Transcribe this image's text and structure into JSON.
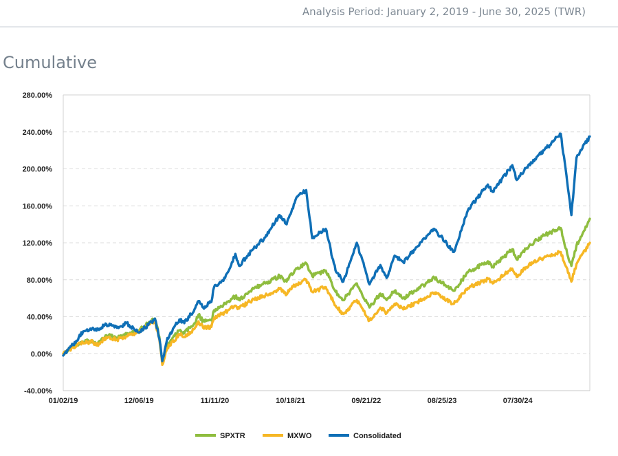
{
  "header": {
    "period": "Analysis Period: January 2, 2019 - June 30, 2025 (TWR)"
  },
  "section": {
    "title": "Cumulative"
  },
  "chart_data": {
    "type": "line",
    "title": "",
    "xlabel": "",
    "ylabel": "",
    "x_tick_labels": [
      "01/02/19",
      "12/06/19",
      "11/11/20",
      "10/18/21",
      "09/21/22",
      "08/25/23",
      "07/30/24"
    ],
    "y_tick_labels": [
      "280.00%",
      "240.00%",
      "200.00%",
      "160.00%",
      "120.00%",
      "80.00%",
      "40.00%",
      "0.00%",
      "-40.00%"
    ],
    "ylim": [
      -40,
      280
    ],
    "y_unit": "%",
    "grid": "horizontal dashed",
    "legend_position": "bottom-center",
    "x_unit": "date",
    "x_range": [
      "2019-01-02",
      "2025-06-30"
    ],
    "series": [
      {
        "name": "SPXTR",
        "color": "#8fbd3f",
        "points": [
          [
            "2019-01-02",
            0
          ],
          [
            "2019-02-15",
            8
          ],
          [
            "2019-04-01",
            13
          ],
          [
            "2019-05-15",
            14
          ],
          [
            "2019-06-01",
            10
          ],
          [
            "2019-07-15",
            20
          ],
          [
            "2019-09-01",
            17
          ],
          [
            "2019-10-15",
            21
          ],
          [
            "2019-12-06",
            25
          ],
          [
            "2020-01-20",
            33
          ],
          [
            "2020-02-19",
            38
          ],
          [
            "2020-03-10",
            18
          ],
          [
            "2020-03-23",
            -10
          ],
          [
            "2020-04-15",
            10
          ],
          [
            "2020-06-08",
            25
          ],
          [
            "2020-06-30",
            22
          ],
          [
            "2020-08-15",
            33
          ],
          [
            "2020-09-02",
            42
          ],
          [
            "2020-09-23",
            35
          ],
          [
            "2020-10-30",
            36
          ],
          [
            "2020-11-11",
            47
          ],
          [
            "2020-12-31",
            54
          ],
          [
            "2021-02-15",
            62
          ],
          [
            "2021-03-04",
            58
          ],
          [
            "2021-05-01",
            70
          ],
          [
            "2021-06-30",
            76
          ],
          [
            "2021-09-02",
            84
          ],
          [
            "2021-10-04",
            78
          ],
          [
            "2021-10-18",
            85
          ],
          [
            "2021-11-20",
            92
          ],
          [
            "2021-12-31",
            98
          ],
          [
            "2022-01-27",
            84
          ],
          [
            "2022-03-29",
            90
          ],
          [
            "2022-05-12",
            67
          ],
          [
            "2022-06-16",
            58
          ],
          [
            "2022-08-16",
            76
          ],
          [
            "2022-09-30",
            55
          ],
          [
            "2022-10-12",
            50
          ],
          [
            "2022-11-30",
            65
          ],
          [
            "2022-12-28",
            58
          ],
          [
            "2023-02-02",
            68
          ],
          [
            "2023-03-13",
            60
          ],
          [
            "2023-06-30",
            77
          ],
          [
            "2023-07-31",
            82
          ],
          [
            "2023-10-27",
            68
          ],
          [
            "2023-12-29",
            88
          ],
          [
            "2024-03-28",
            100
          ],
          [
            "2024-04-19",
            94
          ],
          [
            "2024-07-16",
            113
          ],
          [
            "2024-08-05",
            102
          ],
          [
            "2024-09-30",
            117
          ],
          [
            "2024-12-06",
            128
          ],
          [
            "2025-02-19",
            136
          ],
          [
            "2025-03-13",
            114
          ],
          [
            "2025-04-08",
            95
          ],
          [
            "2025-05-01",
            117
          ],
          [
            "2025-06-30",
            146
          ]
        ]
      },
      {
        "name": "MXWO",
        "color": "#f6b725",
        "points": [
          [
            "2019-01-02",
            0
          ],
          [
            "2019-02-15",
            7
          ],
          [
            "2019-04-01",
            12
          ],
          [
            "2019-05-15",
            13
          ],
          [
            "2019-06-01",
            9
          ],
          [
            "2019-07-15",
            18
          ],
          [
            "2019-09-01",
            15
          ],
          [
            "2019-10-15",
            19
          ],
          [
            "2019-12-06",
            23
          ],
          [
            "2020-01-20",
            31
          ],
          [
            "2020-02-19",
            35
          ],
          [
            "2020-03-10",
            15
          ],
          [
            "2020-03-23",
            -12
          ],
          [
            "2020-04-15",
            6
          ],
          [
            "2020-06-08",
            21
          ],
          [
            "2020-06-30",
            18
          ],
          [
            "2020-08-15",
            27
          ],
          [
            "2020-09-02",
            35
          ],
          [
            "2020-09-23",
            28
          ],
          [
            "2020-10-30",
            29
          ],
          [
            "2020-11-11",
            39
          ],
          [
            "2020-12-31",
            45
          ],
          [
            "2021-02-15",
            52
          ],
          [
            "2021-03-04",
            49
          ],
          [
            "2021-05-01",
            58
          ],
          [
            "2021-06-30",
            63
          ],
          [
            "2021-09-02",
            70
          ],
          [
            "2021-10-04",
            64
          ],
          [
            "2021-10-18",
            70
          ],
          [
            "2021-11-20",
            75
          ],
          [
            "2021-12-31",
            80
          ],
          [
            "2022-01-27",
            67
          ],
          [
            "2022-03-29",
            72
          ],
          [
            "2022-05-12",
            52
          ],
          [
            "2022-06-16",
            43
          ],
          [
            "2022-08-16",
            58
          ],
          [
            "2022-09-30",
            40
          ],
          [
            "2022-10-12",
            36
          ],
          [
            "2022-11-30",
            50
          ],
          [
            "2022-12-28",
            44
          ],
          [
            "2023-02-02",
            54
          ],
          [
            "2023-03-13",
            48
          ],
          [
            "2023-06-30",
            62
          ],
          [
            "2023-07-31",
            66
          ],
          [
            "2023-10-27",
            54
          ],
          [
            "2023-12-29",
            71
          ],
          [
            "2024-03-28",
            81
          ],
          [
            "2024-04-19",
            76
          ],
          [
            "2024-07-16",
            92
          ],
          [
            "2024-08-05",
            83
          ],
          [
            "2024-09-30",
            97
          ],
          [
            "2024-12-06",
            104
          ],
          [
            "2025-02-19",
            110
          ],
          [
            "2025-03-13",
            95
          ],
          [
            "2025-04-08",
            78
          ],
          [
            "2025-05-01",
            97
          ],
          [
            "2025-06-30",
            120
          ]
        ]
      },
      {
        "name": "Consolidated",
        "color": "#0f6fb6",
        "points": [
          [
            "2019-01-02",
            -2
          ],
          [
            "2019-02-15",
            10
          ],
          [
            "2019-04-01",
            24
          ],
          [
            "2019-05-15",
            28
          ],
          [
            "2019-06-01",
            25
          ],
          [
            "2019-07-15",
            32
          ],
          [
            "2019-09-01",
            28
          ],
          [
            "2019-10-15",
            33
          ],
          [
            "2019-12-06",
            23
          ],
          [
            "2020-01-20",
            31
          ],
          [
            "2020-02-19",
            38
          ],
          [
            "2020-03-10",
            16
          ],
          [
            "2020-03-23",
            -8
          ],
          [
            "2020-04-15",
            17
          ],
          [
            "2020-06-08",
            37
          ],
          [
            "2020-06-30",
            33
          ],
          [
            "2020-08-15",
            48
          ],
          [
            "2020-09-02",
            57
          ],
          [
            "2020-09-23",
            50
          ],
          [
            "2020-10-30",
            56
          ],
          [
            "2020-11-11",
            72
          ],
          [
            "2020-12-31",
            82
          ],
          [
            "2021-02-15",
            108
          ],
          [
            "2021-03-04",
            95
          ],
          [
            "2021-05-01",
            112
          ],
          [
            "2021-06-30",
            126
          ],
          [
            "2021-09-02",
            150
          ],
          [
            "2021-10-04",
            140
          ],
          [
            "2021-10-18",
            150
          ],
          [
            "2021-11-20",
            170
          ],
          [
            "2021-12-31",
            177
          ],
          [
            "2022-01-27",
            125
          ],
          [
            "2022-03-29",
            135
          ],
          [
            "2022-05-12",
            90
          ],
          [
            "2022-06-16",
            78
          ],
          [
            "2022-08-16",
            120
          ],
          [
            "2022-09-30",
            85
          ],
          [
            "2022-10-12",
            75
          ],
          [
            "2022-11-30",
            96
          ],
          [
            "2022-12-28",
            82
          ],
          [
            "2023-02-02",
            106
          ],
          [
            "2023-03-13",
            99
          ],
          [
            "2023-06-30",
            128
          ],
          [
            "2023-07-31",
            135
          ],
          [
            "2023-10-27",
            110
          ],
          [
            "2023-12-29",
            155
          ],
          [
            "2024-03-28",
            183
          ],
          [
            "2024-04-19",
            175
          ],
          [
            "2024-07-16",
            204
          ],
          [
            "2024-08-05",
            188
          ],
          [
            "2024-09-30",
            205
          ],
          [
            "2024-12-06",
            220
          ],
          [
            "2025-02-19",
            238
          ],
          [
            "2025-03-13",
            200
          ],
          [
            "2025-04-08",
            150
          ],
          [
            "2025-05-01",
            212
          ],
          [
            "2025-06-30",
            235
          ]
        ]
      }
    ]
  }
}
